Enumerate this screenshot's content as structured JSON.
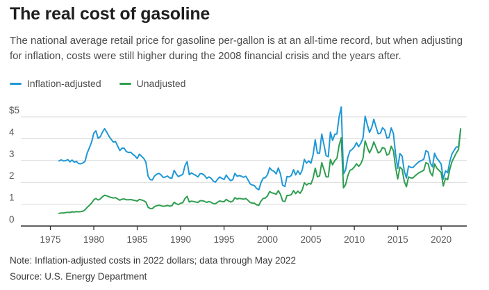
{
  "header": {
    "title": "The real cost of gasoline",
    "subtitle": "The national average retail price for gasoline per-gallon is at an all-time record, but when adjusting for inflation, costs were still higher during the 2008 financial crisis and the years after."
  },
  "footer": {
    "note": "Note: Inflation-adjusted costs in 2022 dollars; data through May 2022",
    "source": "Source: U.S. Energy Department"
  },
  "colors": {
    "axis": "#2b2b2b",
    "gridline": "#d9d9d9",
    "tick_label": "#595959",
    "inflation_adjusted": "#1f98d6",
    "unadjusted": "#2f9e4f"
  },
  "chart_data": {
    "type": "line",
    "title": "The real cost of gasoline",
    "xlabel": "",
    "ylabel": "",
    "grid": "horizontal",
    "legend_position": "top-left",
    "x_start": 1976,
    "x_step": 0.25,
    "xlim": [
      1971.6,
      2022.95
    ],
    "ylim": [
      0,
      5.6
    ],
    "xticks": [
      1975,
      1980,
      1985,
      1990,
      1995,
      2000,
      2005,
      2010,
      2015,
      2020
    ],
    "yticks": [
      0,
      1,
      2,
      3,
      4,
      5
    ],
    "ytick_labels": [
      "0",
      "1",
      "2",
      "3",
      "4",
      "$5"
    ],
    "series": [
      {
        "name": "Inflation-adjusted",
        "color": "#1f98d6",
        "values": [
          2.98,
          3.03,
          2.98,
          2.99,
          3.04,
          2.94,
          3.02,
          2.92,
          2.96,
          2.86,
          2.85,
          2.89,
          2.97,
          3.35,
          3.59,
          3.84,
          4.25,
          4.36,
          4.02,
          4.09,
          4.3,
          4.46,
          4.29,
          4.11,
          3.97,
          3.84,
          3.87,
          3.66,
          3.46,
          3.57,
          3.56,
          3.41,
          3.37,
          3.38,
          3.28,
          3.21,
          3.09,
          3.29,
          3.19,
          3.1,
          2.93,
          2.28,
          2.12,
          2.11,
          2.29,
          2.37,
          2.41,
          2.34,
          2.22,
          2.25,
          2.29,
          2.2,
          2.19,
          2.55,
          2.38,
          2.26,
          2.32,
          2.36,
          2.76,
          2.95,
          2.35,
          2.43,
          2.37,
          2.32,
          2.25,
          2.4,
          2.39,
          2.32,
          2.18,
          2.25,
          2.19,
          2.06,
          2.01,
          2.14,
          2.25,
          2.18,
          2.13,
          2.33,
          2.19,
          2.08,
          2.12,
          2.41,
          2.28,
          2.31,
          2.28,
          2.23,
          2.28,
          2.12,
          1.93,
          1.88,
          1.85,
          1.72,
          1.66,
          1.98,
          2.19,
          2.21,
          2.35,
          2.67,
          2.55,
          2.51,
          2.39,
          2.66,
          2.38,
          1.87,
          1.81,
          2.27,
          2.25,
          2.32,
          2.58,
          2.34,
          2.53,
          2.36,
          2.56,
          3.05,
          2.88,
          2.98,
          2.88,
          3.25,
          3.95,
          3.33,
          3.34,
          4.21,
          3.74,
          3.22,
          3.17,
          4.3,
          3.92,
          4.2,
          4.22,
          5.0,
          5.45,
          2.38,
          2.58,
          3.13,
          3.44,
          3.51,
          3.62,
          3.82,
          3.63,
          3.79,
          4.03,
          5.03,
          4.64,
          4.29,
          4.51,
          4.89,
          4.54,
          4.22,
          4.25,
          4.5,
          4.4,
          4.03,
          4.06,
          4.49,
          4.24,
          3.29,
          2.64,
          3.32,
          3.2,
          2.52,
          2.2,
          2.75,
          2.68,
          2.68,
          2.78,
          2.88,
          2.96,
          3.0,
          3.06,
          3.45,
          3.39,
          2.89,
          2.71,
          3.33,
          3.1,
          2.98,
          2.84,
          2.14,
          2.53,
          2.44,
          2.96,
          3.3,
          3.47,
          3.62,
          3.61,
          4.45
        ]
      },
      {
        "name": "Unadjusted",
        "color": "#2f9e4f",
        "values": [
          0.58,
          0.6,
          0.6,
          0.61,
          0.63,
          0.62,
          0.65,
          0.64,
          0.66,
          0.65,
          0.66,
          0.68,
          0.74,
          0.86,
          0.95,
          1.05,
          1.2,
          1.26,
          1.19,
          1.24,
          1.34,
          1.41,
          1.38,
          1.34,
          1.31,
          1.28,
          1.3,
          1.24,
          1.18,
          1.23,
          1.24,
          1.2,
          1.2,
          1.21,
          1.19,
          1.17,
          1.14,
          1.22,
          1.19,
          1.16,
          1.1,
          0.86,
          0.8,
          0.8,
          0.89,
          0.93,
          0.95,
          0.93,
          0.9,
          0.92,
          0.94,
          0.91,
          0.93,
          1.09,
          1.02,
          0.98,
          1.04,
          1.07,
          1.26,
          1.36,
          1.1,
          1.14,
          1.12,
          1.1,
          1.08,
          1.16,
          1.16,
          1.13,
          1.08,
          1.12,
          1.09,
          1.03,
          1.02,
          1.09,
          1.15,
          1.12,
          1.11,
          1.22,
          1.15,
          1.1,
          1.14,
          1.3,
          1.24,
          1.26,
          1.25,
          1.23,
          1.26,
          1.18,
          1.08,
          1.05,
          1.04,
          0.97,
          0.95,
          1.14,
          1.26,
          1.28,
          1.38,
          1.58,
          1.52,
          1.5,
          1.45,
          1.62,
          1.45,
          1.15,
          1.12,
          1.4,
          1.4,
          1.44,
          1.62,
          1.48,
          1.6,
          1.5,
          1.65,
          1.98,
          1.88,
          1.95,
          1.92,
          2.18,
          2.65,
          2.25,
          2.3,
          2.9,
          2.6,
          2.25,
          2.25,
          3.05,
          2.8,
          3.0,
          3.1,
          3.7,
          4.04,
          1.75,
          1.9,
          2.3,
          2.55,
          2.6,
          2.7,
          2.85,
          2.73,
          2.85,
          3.1,
          3.9,
          3.6,
          3.35,
          3.55,
          3.85,
          3.6,
          3.35,
          3.4,
          3.6,
          3.55,
          3.25,
          3.3,
          3.65,
          3.45,
          2.7,
          2.15,
          2.7,
          2.6,
          2.05,
          1.8,
          2.25,
          2.2,
          2.2,
          2.3,
          2.38,
          2.45,
          2.5,
          2.55,
          2.9,
          2.85,
          2.45,
          2.3,
          2.85,
          2.65,
          2.55,
          2.45,
          1.83,
          2.18,
          2.12,
          2.6,
          2.95,
          3.15,
          3.35,
          3.5,
          4.45
        ]
      }
    ]
  }
}
